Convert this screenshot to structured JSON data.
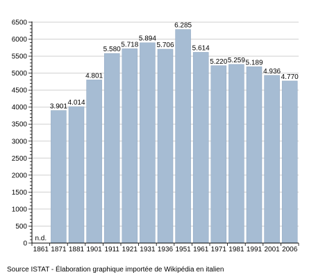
{
  "chart_data": {
    "type": "bar",
    "categories": [
      "1861",
      "1871",
      "1881",
      "1901",
      "1911",
      "1921",
      "1931",
      "1936",
      "1951",
      "1961",
      "1971",
      "1981",
      "1991",
      "2001",
      "2006"
    ],
    "values": [
      null,
      3901,
      4014,
      4801,
      5580,
      5718,
      5894,
      5706,
      6285,
      5614,
      5220,
      5259,
      5189,
      4936,
      4770
    ],
    "data_labels": [
      "n.d.",
      "3.901",
      "4.014",
      "4.801",
      "5.580",
      "5.718",
      "5.894",
      "5.706",
      "6.285",
      "5.614",
      "5.220",
      "5.259",
      "5.189",
      "4.936",
      "4.770"
    ],
    "yticks": [
      0,
      500,
      1000,
      1500,
      2000,
      2500,
      3000,
      3500,
      4000,
      4500,
      5000,
      5500,
      6000,
      6500
    ],
    "ylim": [
      0,
      6500
    ],
    "grid": true,
    "legend": "none",
    "title": "",
    "xlabel": "",
    "ylabel": "",
    "colors": {
      "bar": "#a6bcd3",
      "bar_edge": "#8da5bf",
      "grid": "#cfcfcf",
      "axis": "#000000"
    }
  },
  "footer": {
    "source": "Source ISTAT - Élaboration graphique importée de Wikipédia en italien"
  }
}
